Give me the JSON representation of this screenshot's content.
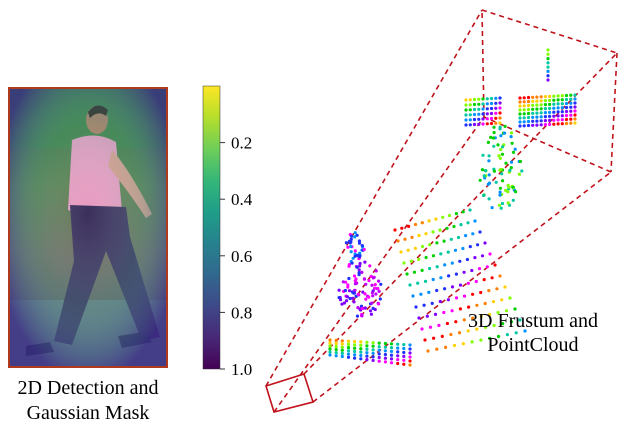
{
  "detection_caption": [
    "2D Detection and",
    "Gaussian Mask"
  ],
  "frustum_caption": [
    "3D Frustum and",
    "PointCloud"
  ],
  "colorbar": {
    "ticks": [
      {
        "value": 0.2,
        "label": "0.2"
      },
      {
        "value": 0.4,
        "label": "0.4"
      },
      {
        "value": 0.6,
        "label": "0.6"
      },
      {
        "value": 0.8,
        "label": "0.8"
      },
      {
        "value": 1.0,
        "label": "1.0"
      }
    ],
    "colormap": [
      "#fde725",
      "#b5de2b",
      "#6ece58",
      "#35b779",
      "#1f9e89",
      "#26828e",
      "#31688e",
      "#3e4989",
      "#482878",
      "#440154"
    ]
  },
  "colors": {
    "frustum_line": "#c0121b",
    "image_border": "#b03a1e"
  },
  "icons": {
    "detection_image": "pedestrian-walking-photo",
    "point_cloud": "lidar-point-cloud"
  }
}
